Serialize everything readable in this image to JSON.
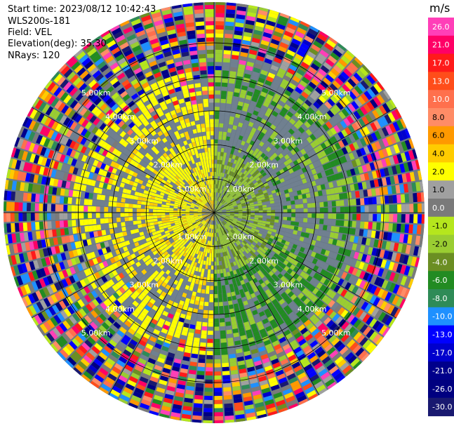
{
  "info": {
    "start_time": "Start time: 2023/08/12 10:42:43",
    "instrument": "WLS200s-181",
    "field": "Field: VEL",
    "elevation": "Elevation(deg): 35.30",
    "nrays": "NRays: 120"
  },
  "chart_data": {
    "type": "ppi-polar",
    "field": "VEL",
    "unit": "m/s",
    "nrays": 120,
    "ring_labels": [
      "1.00km",
      "2.00km",
      "3.00km",
      "4.00km",
      "5.00km"
    ],
    "ring_km": [
      1,
      2,
      3,
      4,
      5
    ],
    "max_range_km": 6.2,
    "colorbar": {
      "unit": "m/s",
      "ticks": [
        "26.0",
        "21.0",
        "17.0",
        "13.0",
        "10.0",
        "8.0",
        "6.0",
        "4.0",
        "2.0",
        "1.0",
        "0.0",
        "-1.0",
        "-2.0",
        "-4.0",
        "-6.0",
        "-8.0",
        "-10.0",
        "-13.0",
        "-17.0",
        "-21.0",
        "-26.0",
        "-30.0"
      ],
      "colors": [
        "#ff3fb8",
        "#ff0066",
        "#ff1a1a",
        "#ff4d1a",
        "#ff704d",
        "#ff8c66",
        "#ff9900",
        "#ffcc00",
        "#ffff00",
        "#a0a0a0",
        "#7a7a7a",
        "#b5e61d",
        "#9acd32",
        "#6b8e23",
        "#228b22",
        "#2e8b57",
        "#1e90ff",
        "#0000ff",
        "#0000cd",
        "#00008b",
        "#000080",
        "#191970"
      ]
    }
  }
}
